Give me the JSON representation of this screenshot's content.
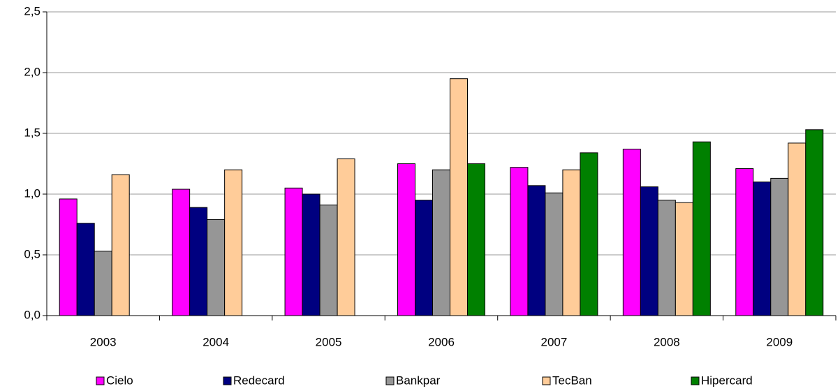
{
  "chart_data": {
    "type": "bar",
    "categories": [
      "2003",
      "2004",
      "2005",
      "2006",
      "2007",
      "2008",
      "2009"
    ],
    "series": [
      {
        "name": "Cielo",
        "color": "#ff00ff",
        "values": [
          0.96,
          1.04,
          1.05,
          1.25,
          1.22,
          1.37,
          1.21
        ]
      },
      {
        "name": "Redecard",
        "color": "#000080",
        "values": [
          0.76,
          0.89,
          1.0,
          0.95,
          1.07,
          1.06,
          1.1
        ]
      },
      {
        "name": "Bankpar",
        "color": "#969696",
        "values": [
          0.53,
          0.79,
          0.91,
          1.2,
          1.01,
          0.95,
          1.13
        ]
      },
      {
        "name": "TecBan",
        "color": "#ffcc99",
        "values": [
          1.16,
          1.2,
          1.29,
          1.95,
          1.2,
          0.93,
          1.42
        ]
      },
      {
        "name": "Hipercard",
        "color": "#008000",
        "values": [
          null,
          null,
          null,
          1.25,
          1.34,
          1.43,
          1.53
        ]
      }
    ],
    "ylim": [
      0,
      2.5
    ],
    "yticks": [
      {
        "value": 0,
        "label": "0,0"
      },
      {
        "value": 0.5,
        "label": "0,5"
      },
      {
        "value": 1,
        "label": "1,0"
      },
      {
        "value": 1.5,
        "label": "1,5"
      },
      {
        "value": 2,
        "label": "2,0"
      },
      {
        "value": 2.5,
        "label": "2,5"
      }
    ],
    "grid": true,
    "legend": "bottom"
  }
}
